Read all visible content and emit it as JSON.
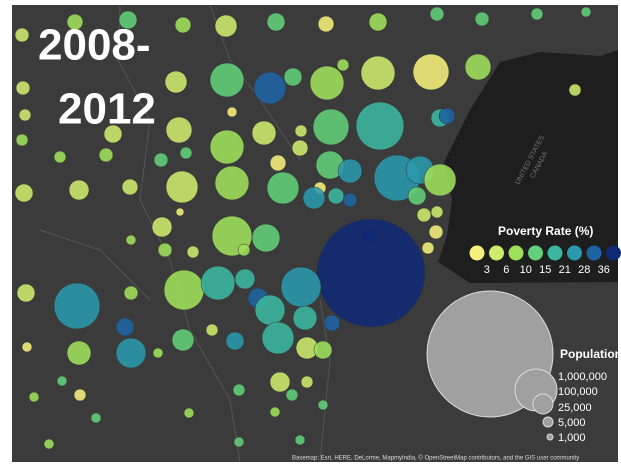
{
  "title_lines": [
    "2008-",
    "2012"
  ],
  "boundary_label": [
    "UNITED STATES",
    "CANADA"
  ],
  "poverty_legend": {
    "title": "Poverty Rate (%)",
    "breaks": [
      "3",
      "6",
      "10",
      "15",
      "21",
      "28",
      "36"
    ],
    "colors": [
      "#f6ef7c",
      "#cdec6c",
      "#9fe05a",
      "#62d07a",
      "#3bb79f",
      "#2a98ad",
      "#1e64a3",
      "#0f2a74"
    ]
  },
  "population_legend": {
    "title": "Population",
    "labels": [
      "1,000,000",
      "100,000",
      "25,000",
      "5,000",
      "1,000"
    ]
  },
  "attribution": "Basemap: Esri, HERE, DeLorme, MapmyIndia, © OpenStreetMap contributors, and the GIS user community"
}
